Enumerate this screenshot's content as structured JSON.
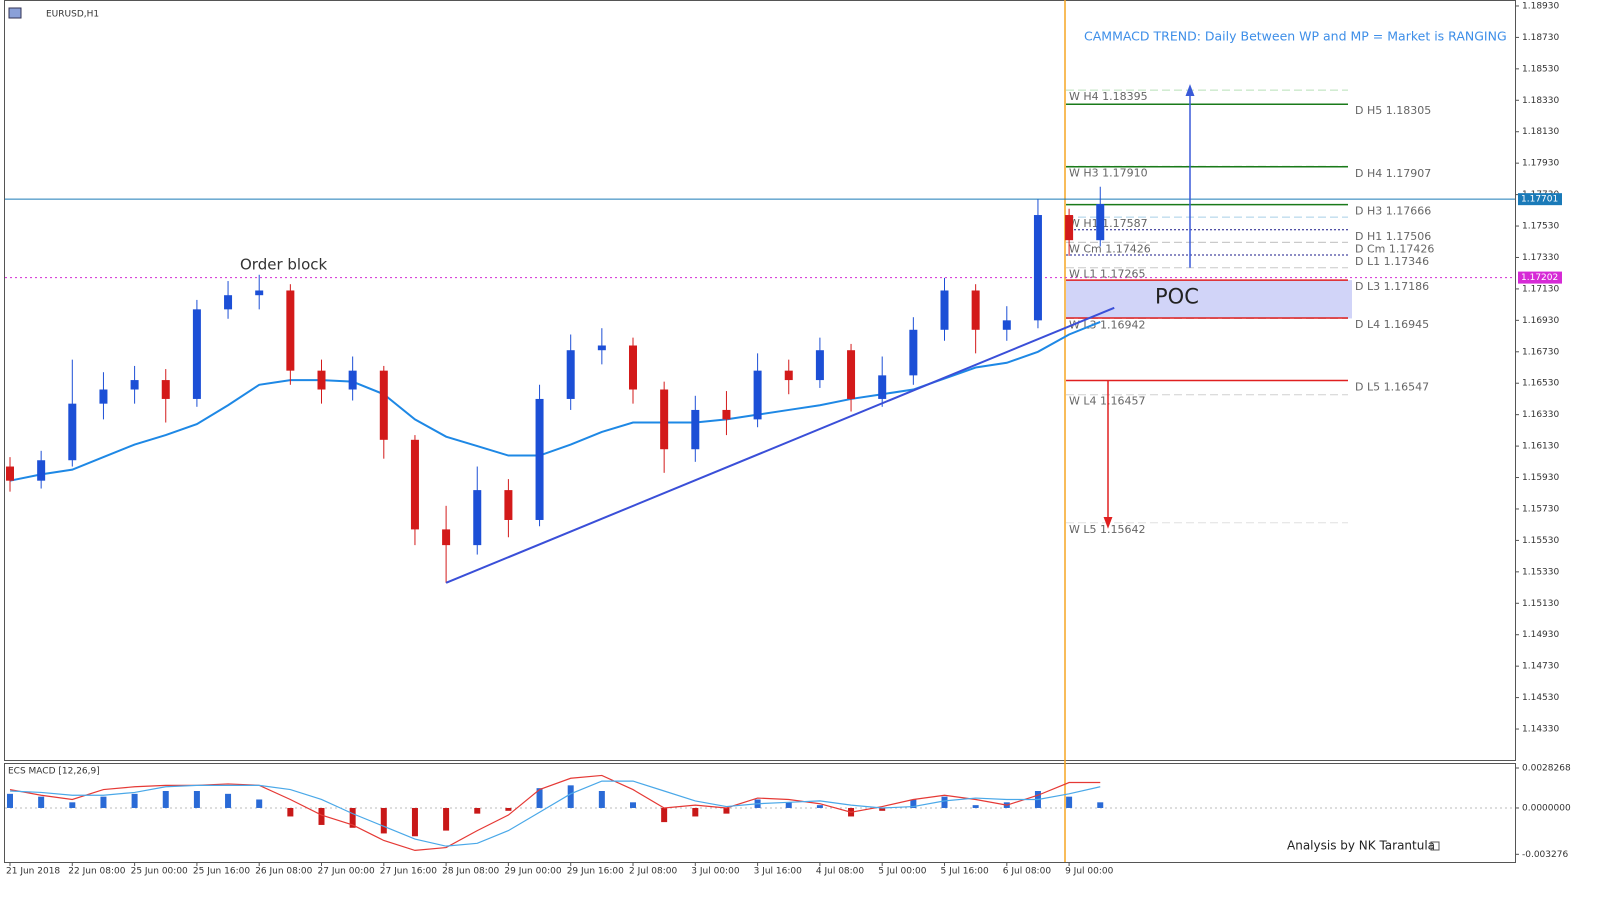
{
  "chart_data": [
    {
      "type": "candlestick",
      "title": "EURUSD,H1",
      "annotation": "CAMMACD TREND: Daily Between WP and MP = Market is RANGING",
      "order_block": "Order block",
      "poc": "POC",
      "credit": "Analysis by NK Tarantula",
      "categories": [
        "21 Jun 2018",
        "22 Jun 08:00",
        "25 Jun 00:00",
        "25 Jun 16:00",
        "26 Jun 08:00",
        "27 Jun 00:00",
        "27 Jun 16:00",
        "28 Jun 08:00",
        "29 Jun 00:00",
        "29 Jun 16:00",
        "2 Jul 08:00",
        "3 Jul 00:00",
        "3 Jul 16:00",
        "4 Jul 08:00",
        "5 Jul 00:00",
        "5 Jul 16:00",
        "6 Jul 08:00",
        "9 Jul 00:00"
      ],
      "open": [
        1.16,
        1.1591,
        1.1604,
        1.164,
        1.1649,
        1.1655,
        1.1643,
        1.17,
        1.1709,
        1.1712,
        1.1661,
        1.1649,
        1.1661,
        1.1617,
        1.156,
        1.155,
        1.1585,
        1.1566,
        1.1643,
        1.1674,
        1.1677,
        1.1649,
        1.1611,
        1.1636,
        1.163,
        1.1661,
        1.1655,
        1.1674,
        1.1643,
        1.1658,
        1.1687,
        1.1712,
        1.1687,
        1.1693,
        1.176,
        1.1744
      ],
      "high": [
        1.1606,
        1.161,
        1.1668,
        1.166,
        1.1664,
        1.1662,
        1.1706,
        1.1718,
        1.1722,
        1.1716,
        1.1668,
        1.167,
        1.1664,
        1.162,
        1.1575,
        1.16,
        1.1592,
        1.1652,
        1.1684,
        1.1688,
        1.1682,
        1.1654,
        1.1645,
        1.1648,
        1.1672,
        1.1668,
        1.1682,
        1.1678,
        1.167,
        1.1695,
        1.172,
        1.1716,
        1.1702,
        1.177,
        1.1764,
        1.1778
      ],
      "low": [
        1.1584,
        1.1586,
        1.16,
        1.163,
        1.164,
        1.1628,
        1.1638,
        1.1694,
        1.17,
        1.1652,
        1.164,
        1.1642,
        1.1605,
        1.155,
        1.1526,
        1.1544,
        1.1555,
        1.1562,
        1.1636,
        1.1665,
        1.164,
        1.1596,
        1.1603,
        1.162,
        1.1625,
        1.1646,
        1.165,
        1.1635,
        1.1638,
        1.1652,
        1.168,
        1.1672,
        1.168,
        1.1688,
        1.1734,
        1.174
      ],
      "close": [
        1.1591,
        1.1604,
        1.164,
        1.1649,
        1.1655,
        1.1643,
        1.17,
        1.1709,
        1.1712,
        1.1661,
        1.1649,
        1.1661,
        1.1617,
        1.156,
        1.155,
        1.1585,
        1.1566,
        1.1643,
        1.1674,
        1.1677,
        1.1649,
        1.1611,
        1.1636,
        1.163,
        1.1661,
        1.1655,
        1.1674,
        1.1643,
        1.1658,
        1.1687,
        1.1712,
        1.1687,
        1.1693,
        1.176,
        1.1744,
        1.1767
      ],
      "up_color": "#1c4fd6",
      "down_color": "#d31a1a",
      "ma": {
        "color": "#1e88e5",
        "values": [
          1.1591,
          1.1595,
          1.1598,
          1.1606,
          1.1614,
          1.162,
          1.1627,
          1.1639,
          1.1652,
          1.1655,
          1.1655,
          1.1654,
          1.1646,
          1.163,
          1.1619,
          1.1613,
          1.1607,
          1.1607,
          1.1614,
          1.1622,
          1.1628,
          1.1628,
          1.1628,
          1.163,
          1.1633,
          1.1636,
          1.1639,
          1.1643,
          1.1646,
          1.1649,
          1.1656,
          1.1663,
          1.1666,
          1.1673,
          1.1684,
          1.1692
        ]
      },
      "trendline": {
        "color": "#3a4fd8",
        "candle_index": [
          14,
          35
        ],
        "values": [
          1.1526,
          1.1701
        ]
      },
      "ylim": [
        1.14133,
        1.18968
      ],
      "yticks": [
        {
          "value": 1.1893,
          "label": "1.18930"
        },
        {
          "value": 1.1873,
          "label": "1.18730"
        },
        {
          "value": 1.1853,
          "label": "1.18530"
        },
        {
          "value": 1.1833,
          "label": "1.18330"
        },
        {
          "value": 1.1813,
          "label": "1.18130"
        },
        {
          "value": 1.1793,
          "label": "1.17930"
        },
        {
          "value": 1.1773,
          "label": "1.17730"
        },
        {
          "value": 1.1753,
          "label": "1.17530"
        },
        {
          "value": 1.1733,
          "label": "1.17330"
        },
        {
          "value": 1.1713,
          "label": "1.17130"
        },
        {
          "value": 1.1693,
          "label": "1.16930"
        },
        {
          "value": 1.1673,
          "label": "1.16730"
        },
        {
          "value": 1.1653,
          "label": "1.16530"
        },
        {
          "value": 1.1633,
          "label": "1.16330"
        },
        {
          "value": 1.1613,
          "label": "1.16130"
        },
        {
          "value": 1.1593,
          "label": "1.15930"
        },
        {
          "value": 1.1573,
          "label": "1.15730"
        },
        {
          "value": 1.1553,
          "label": "1.15530"
        },
        {
          "value": 1.1533,
          "label": "1.15330"
        },
        {
          "value": 1.1513,
          "label": "1.15130"
        },
        {
          "value": 1.1493,
          "label": "1.14930"
        },
        {
          "value": 1.1473,
          "label": "1.14730"
        },
        {
          "value": 1.1453,
          "label": "1.14530"
        },
        {
          "value": 1.1433,
          "label": "1.14330"
        }
      ],
      "levels": [
        {
          "label": "W H4 1.18395",
          "value": 1.18395,
          "side": "W",
          "color": "#b8e0b8",
          "style": "dashed"
        },
        {
          "label": "D H5 1.18305",
          "value": 1.18305,
          "side": "D",
          "color": "#1a7a1a",
          "style": "solid"
        },
        {
          "label": "W H3 1.17910",
          "value": 1.1791,
          "side": "W",
          "color": "#b8e0b8",
          "style": "dashed"
        },
        {
          "label": "D H4 1.17907",
          "value": 1.17907,
          "side": "D",
          "color": "#1a7a1a",
          "style": "solid"
        },
        {
          "label": "D H3 1.17666",
          "value": 1.17666,
          "side": "D",
          "color": "#1a7a1a",
          "style": "solid"
        },
        {
          "label": "W H1 1.17587",
          "value": 1.17587,
          "side": "W",
          "color": "#a8cfe8",
          "style": "dashed"
        },
        {
          "label": "D H1 1.17506",
          "value": 1.17506,
          "side": "D",
          "color": "#1a1a8a",
          "style": "dotted"
        },
        {
          "label": "W Cm 1.17426",
          "value": 1.17426,
          "side": "W",
          "color": "#c8c8c8",
          "style": "dashed"
        },
        {
          "label": "D Cm 1.17426",
          "value": 1.17426,
          "side": "D",
          "color": "#c8c8c8",
          "style": "dashed"
        },
        {
          "label": "D L1 1.17346",
          "value": 1.17346,
          "side": "D",
          "color": "#1a1a8a",
          "style": "dotted"
        },
        {
          "label": "W L1 1.17265",
          "value": 1.17265,
          "side": "W",
          "color": "#c8c8c8",
          "style": "dashed"
        },
        {
          "label": "D L3 1.17186",
          "value": 1.17186,
          "side": "D",
          "color": "#e02020",
          "style": "solid"
        },
        {
          "label": "W L3 1.16942",
          "value": 1.16942,
          "side": "W",
          "color": "#c8c8c8",
          "style": "dashed"
        },
        {
          "label": "D L4 1.16945",
          "value": 1.16945,
          "side": "D",
          "color": "#e02020",
          "style": "solid"
        },
        {
          "label": "D L5 1.16547",
          "value": 1.16547,
          "side": "D",
          "color": "#e02020",
          "style": "solid"
        },
        {
          "label": "W L4 1.16457",
          "value": 1.16457,
          "side": "W",
          "color": "#d0d0d0",
          "style": "dashed"
        },
        {
          "label": "W L5 1.15642",
          "value": 1.15642,
          "side": "W",
          "color": "#e0e0e0",
          "style": "dashed"
        }
      ],
      "price_markers": [
        {
          "value": 1.17701,
          "color": "#1a7ab8"
        },
        {
          "value": 1.17202,
          "color": "#d62ad6"
        }
      ],
      "poc_zone": {
        "color": "#c9ccf7",
        "values": [
          1.16942,
          1.17186
        ]
      },
      "arrows": [
        {
          "color": "#3a5ad8",
          "values": [
            1.17265,
            1.18395
          ]
        },
        {
          "color": "#e02020",
          "values": [
            1.16547,
            1.15642
          ]
        }
      ]
    },
    {
      "type": "macd",
      "title": "ECS MACD [12,26,9]",
      "histogram": {
        "up_color": "#2a6ad6",
        "down_color": "#c81818",
        "values": [
          0.001,
          0.0008,
          0.0004,
          0.0008,
          0.001,
          0.0012,
          0.0012,
          0.001,
          0.0006,
          -0.0006,
          -0.0012,
          -0.0014,
          -0.0018,
          -0.002,
          -0.0016,
          -0.0004,
          -0.0002,
          0.0014,
          0.0016,
          0.0012,
          0.0004,
          -0.001,
          -0.0006,
          -0.0004,
          0.0006,
          0.0004,
          0.0002,
          -0.0006,
          -0.0002,
          0.0006,
          0.0008,
          0.0002,
          0.0004,
          0.0012,
          0.0008,
          0.0004
        ]
      },
      "macd": {
        "color": "#e53935",
        "values": [
          0.0013,
          0.0009,
          0.0006,
          0.0013,
          0.0015,
          0.0016,
          0.0016,
          0.0017,
          0.0016,
          0.0006,
          -0.0005,
          -0.0012,
          -0.0023,
          -0.003,
          -0.0028,
          -0.0016,
          -0.0005,
          0.0013,
          0.0021,
          0.0023,
          0.0013,
          0.0,
          0.0002,
          0.0,
          0.0007,
          0.0006,
          0.0003,
          -0.0003,
          0.0001,
          0.0006,
          0.0009,
          0.0006,
          0.0002,
          0.0009,
          0.0018,
          0.0018
        ]
      },
      "signal": {
        "color": "#4aa8e8",
        "values": [
          0.0012,
          0.0011,
          0.0009,
          0.0009,
          0.0011,
          0.0015,
          0.0016,
          0.0016,
          0.0016,
          0.0013,
          0.0006,
          -0.0004,
          -0.0013,
          -0.0022,
          -0.0027,
          -0.0025,
          -0.0016,
          -0.0003,
          0.001,
          0.0019,
          0.0019,
          0.0012,
          0.0005,
          0.0001,
          0.0003,
          0.0004,
          0.0005,
          0.0002,
          0.0,
          0.0001,
          0.0005,
          0.0007,
          0.0006,
          0.0006,
          0.001,
          0.0015
        ]
      },
      "ylim": [
        -0.00382,
        0.00318
      ],
      "yticks": [
        0.0028268,
        {
          "value": 0,
          "label": "0.0000000"
        },
        {
          "value": -0.003276,
          "label": "-0.003276"
        }
      ]
    }
  ]
}
